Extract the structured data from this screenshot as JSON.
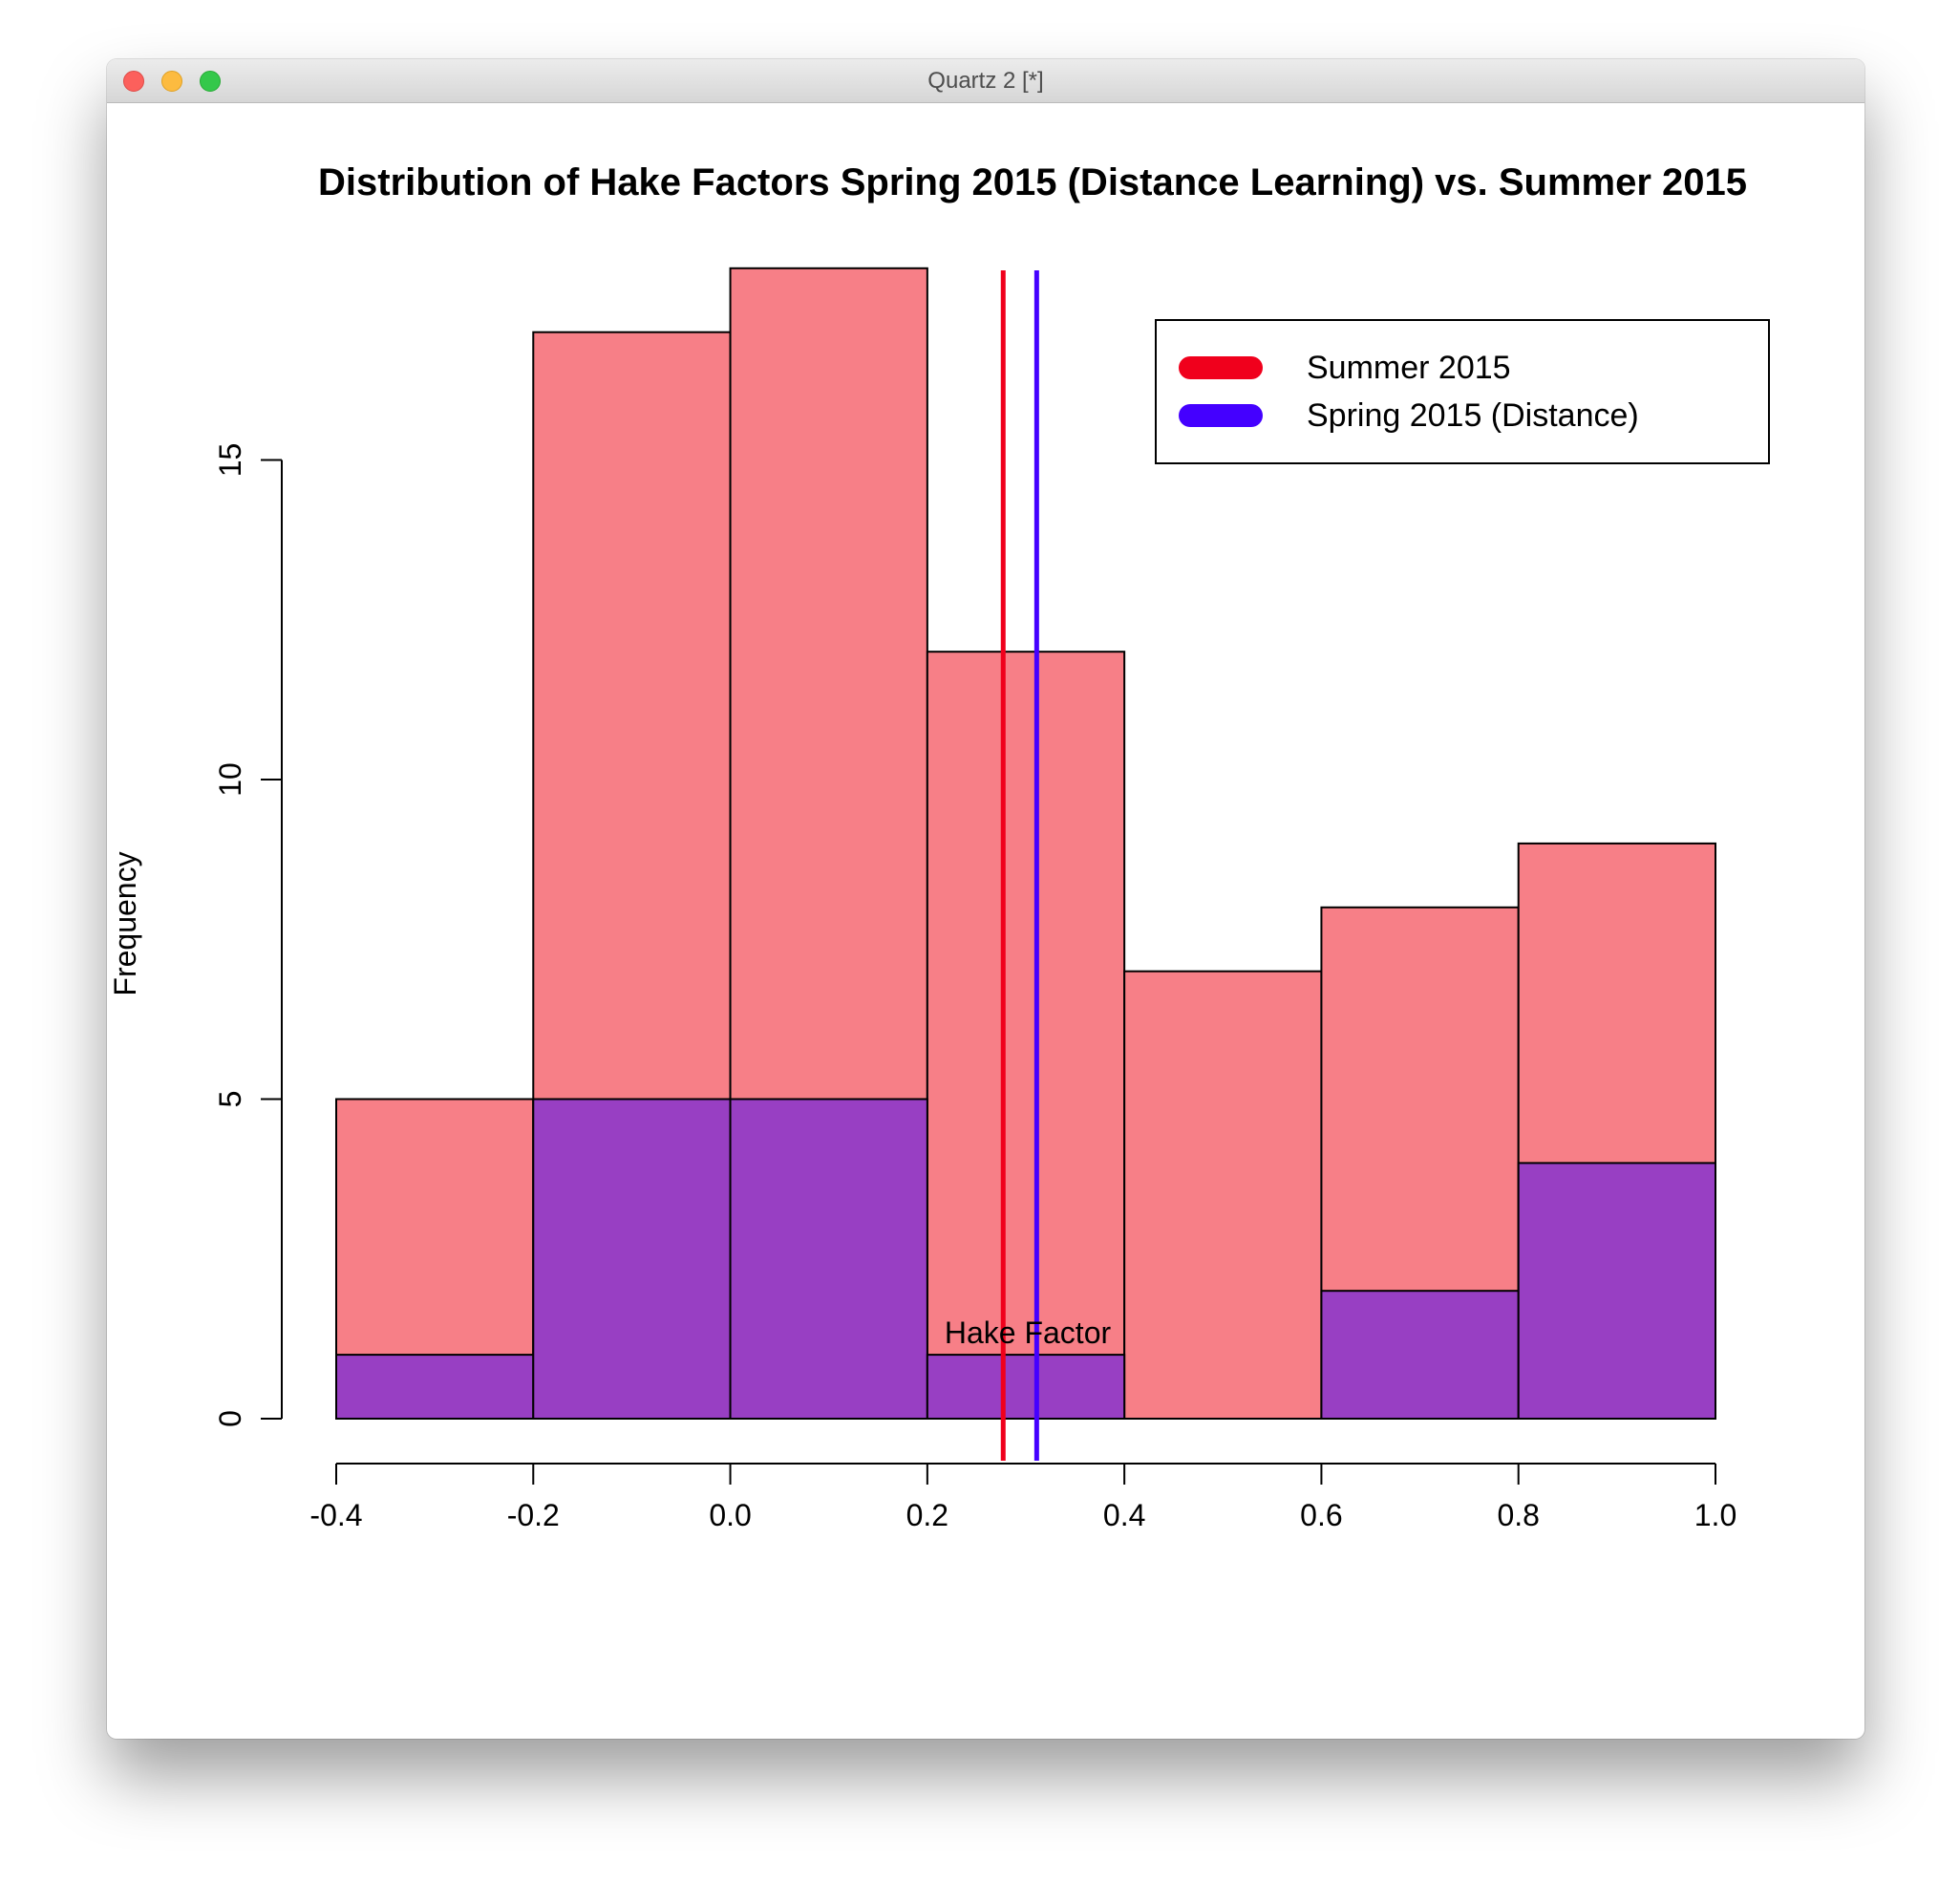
{
  "window": {
    "title": "Quartz 2 [*]"
  },
  "chart_data": {
    "type": "bar",
    "title": "Distribution of Hake Factors Spring 2015 (Distance Learning) vs. Summer 2015",
    "xlabel": "Hake Factor",
    "ylabel": "Frequency",
    "bin_edges": [
      -0.4,
      -0.2,
      0.0,
      0.2,
      0.4,
      0.6,
      0.8,
      1.0
    ],
    "xlim": [
      -0.4,
      1.0
    ],
    "ylim": [
      0,
      18
    ],
    "x_ticks": [
      -0.4,
      -0.2,
      0.0,
      0.2,
      0.4,
      0.6,
      0.8,
      1.0
    ],
    "x_tick_labels": [
      "-0.4",
      "-0.2",
      "0.0",
      "0.2",
      "0.4",
      "0.6",
      "0.8",
      "1.0"
    ],
    "y_ticks": [
      0,
      5,
      10,
      15
    ],
    "y_tick_labels": [
      "0",
      "5",
      "10",
      "15"
    ],
    "series": [
      {
        "name": "Summer 2015",
        "values": [
          5,
          17,
          18,
          12,
          7,
          8,
          9
        ],
        "fill": "#f77f87",
        "line_color": "#f0001c"
      },
      {
        "name": "Spring 2015 (Distance)",
        "values": [
          1,
          5,
          5,
          1,
          0,
          2,
          4
        ],
        "fill": "#983fc3",
        "line_color": "#4400ff"
      }
    ],
    "vertical_lines": [
      {
        "series": "Summer 2015",
        "x": 0.277,
        "color": "#f0001c"
      },
      {
        "series": "Spring 2015 (Distance)",
        "x": 0.311,
        "color": "#4400ff"
      }
    ],
    "legend": {
      "placement": "top-right",
      "entries": [
        {
          "label": "Summer 2015",
          "color": "#f0001c"
        },
        {
          "label": "Spring 2015 (Distance)",
          "color": "#4400ff"
        }
      ]
    },
    "grid": false
  }
}
